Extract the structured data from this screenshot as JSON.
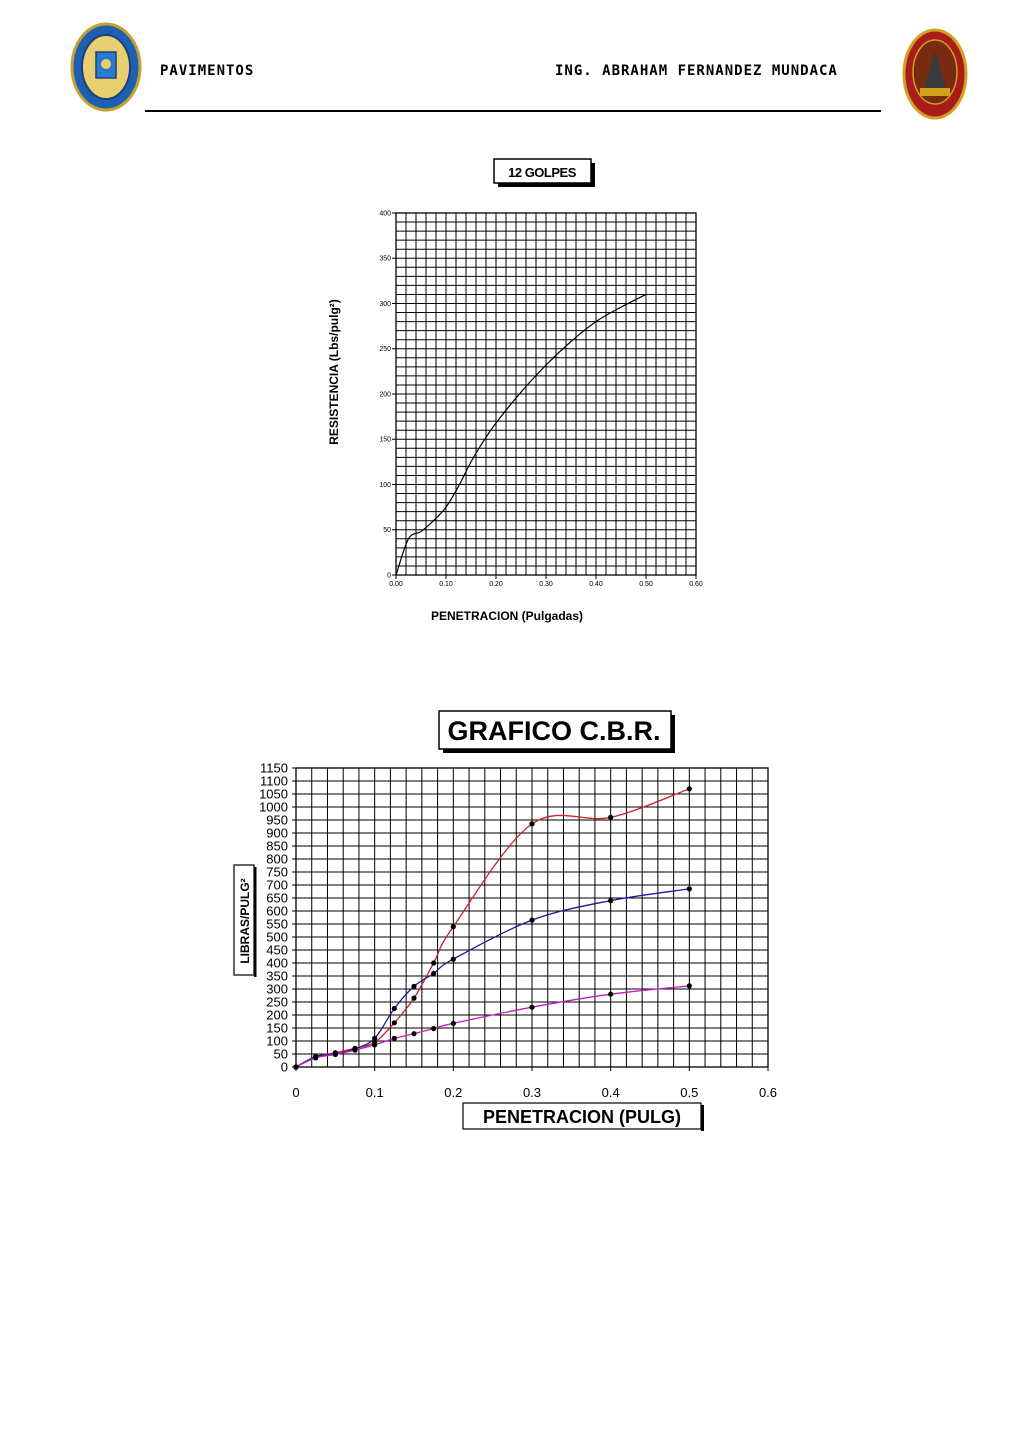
{
  "header": {
    "left_label": "PAVIMENTOS",
    "right_label": "ING. ABRAHAM FERNANDEZ MUNDACA",
    "logo_left_icon": "university-seal-icon",
    "logo_right_icon": "faculty-crest-icon"
  },
  "chart_data": [
    {
      "type": "line",
      "title": "12 GOLPES",
      "xlabel": "PENETRACION  (Pulgadas)",
      "ylabel": "RESISTENCIA  (Lbs/pulg²)",
      "xlim": [
        0,
        0.6
      ],
      "ylim": [
        0,
        400
      ],
      "x_ticks": [
        "0.00",
        "0.10",
        "0.20",
        "0.30",
        "0.40",
        "0.50",
        "0.60"
      ],
      "y_ticks": [
        "0",
        "50",
        "100",
        "150",
        "200",
        "250",
        "300",
        "350",
        "400"
      ],
      "grid": true,
      "series": [
        {
          "color": "#000000",
          "x": [
            0,
            0.025,
            0.05,
            0.075,
            0.1,
            0.125,
            0.15,
            0.175,
            0.2,
            0.25,
            0.3,
            0.35,
            0.4,
            0.45,
            0.5
          ],
          "y": [
            0,
            40,
            48,
            60,
            75,
            98,
            125,
            148,
            168,
            202,
            232,
            258,
            280,
            296,
            310
          ]
        }
      ]
    },
    {
      "type": "line",
      "title": "GRAFICO C.B.R.",
      "xlabel": "PENETRACION (PULG)",
      "ylabel": "LIBRAS/PULG²",
      "xlim": [
        0,
        0.6
      ],
      "ylim": [
        0,
        1150
      ],
      "x_ticks": [
        "0",
        "0.1",
        "0.2",
        "0.3",
        "0.4",
        "0.5",
        "0.6"
      ],
      "y_ticks": [
        "0",
        "50",
        "100",
        "150",
        "200",
        "250",
        "300",
        "350",
        "400",
        "450",
        "500",
        "550",
        "600",
        "650",
        "700",
        "750",
        "800",
        "850",
        "900",
        "950",
        "1000",
        "1050",
        "1100",
        "1150"
      ],
      "grid": true,
      "series": [
        {
          "color": "#cc2222",
          "x": [
            0,
            0.025,
            0.05,
            0.075,
            0.1,
            0.125,
            0.15,
            0.175,
            0.2,
            0.3,
            0.4,
            0.5
          ],
          "y": [
            0,
            40,
            55,
            72,
            95,
            170,
            265,
            400,
            540,
            935,
            960,
            1070
          ]
        },
        {
          "color": "#1a1aa0",
          "x": [
            0,
            0.025,
            0.05,
            0.075,
            0.1,
            0.125,
            0.15,
            0.175,
            0.2,
            0.3,
            0.4,
            0.5
          ],
          "y": [
            0,
            40,
            50,
            70,
            110,
            225,
            310,
            360,
            415,
            565,
            640,
            685
          ]
        },
        {
          "color": "#c020c0",
          "x": [
            0,
            0.025,
            0.05,
            0.075,
            0.1,
            0.125,
            0.15,
            0.175,
            0.2,
            0.3,
            0.4,
            0.5
          ],
          "y": [
            0,
            35,
            48,
            65,
            85,
            110,
            128,
            148,
            168,
            230,
            280,
            312
          ]
        }
      ]
    }
  ]
}
